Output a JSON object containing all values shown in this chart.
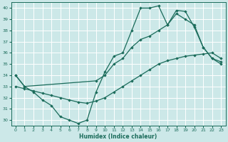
{
  "xlabel": "Humidex (Indice chaleur)",
  "bg_color": "#cce8e8",
  "grid_color": "#ffffff",
  "line_color": "#1a6b5a",
  "xlim": [
    -0.5,
    23.5
  ],
  "ylim": [
    29.5,
    40.5
  ],
  "yticks": [
    30,
    31,
    32,
    33,
    34,
    35,
    36,
    37,
    38,
    39,
    40
  ],
  "xticks": [
    0,
    1,
    2,
    3,
    4,
    5,
    6,
    7,
    8,
    9,
    10,
    11,
    12,
    13,
    14,
    15,
    16,
    17,
    18,
    19,
    20,
    21,
    22,
    23
  ],
  "curve1_x": [
    0,
    1,
    2,
    3,
    4,
    5,
    6,
    7,
    8,
    9,
    10,
    11,
    12,
    13,
    14,
    15,
    16,
    17,
    18,
    19,
    20,
    21,
    22,
    23
  ],
  "curve1_y": [
    34.0,
    33.0,
    32.5,
    31.8,
    31.3,
    30.3,
    30.0,
    29.7,
    30.0,
    32.5,
    34.3,
    35.7,
    36.0,
    38.0,
    40.0,
    40.0,
    40.2,
    38.5,
    39.8,
    39.7,
    38.3,
    36.5,
    35.5,
    35.0
  ],
  "curve2_x": [
    0,
    1,
    9,
    10,
    11,
    12,
    13,
    14,
    15,
    16,
    17,
    18,
    19,
    20,
    21,
    22,
    23
  ],
  "curve2_y": [
    34.0,
    33.0,
    33.5,
    34.0,
    35.0,
    35.5,
    36.5,
    37.2,
    37.5,
    38.0,
    38.5,
    39.5,
    39.0,
    38.5,
    36.5,
    35.5,
    35.2
  ],
  "curve3_x": [
    0,
    1,
    2,
    3,
    4,
    5,
    6,
    7,
    8,
    9,
    10,
    11,
    12,
    13,
    14,
    15,
    16,
    17,
    18,
    19,
    20,
    21,
    22,
    23
  ],
  "curve3_y": [
    33.0,
    32.8,
    32.6,
    32.4,
    32.2,
    32.0,
    31.8,
    31.6,
    31.5,
    31.7,
    32.0,
    32.5,
    33.0,
    33.5,
    34.0,
    34.5,
    35.0,
    35.3,
    35.5,
    35.7,
    35.8,
    35.9,
    36.0,
    35.5
  ]
}
